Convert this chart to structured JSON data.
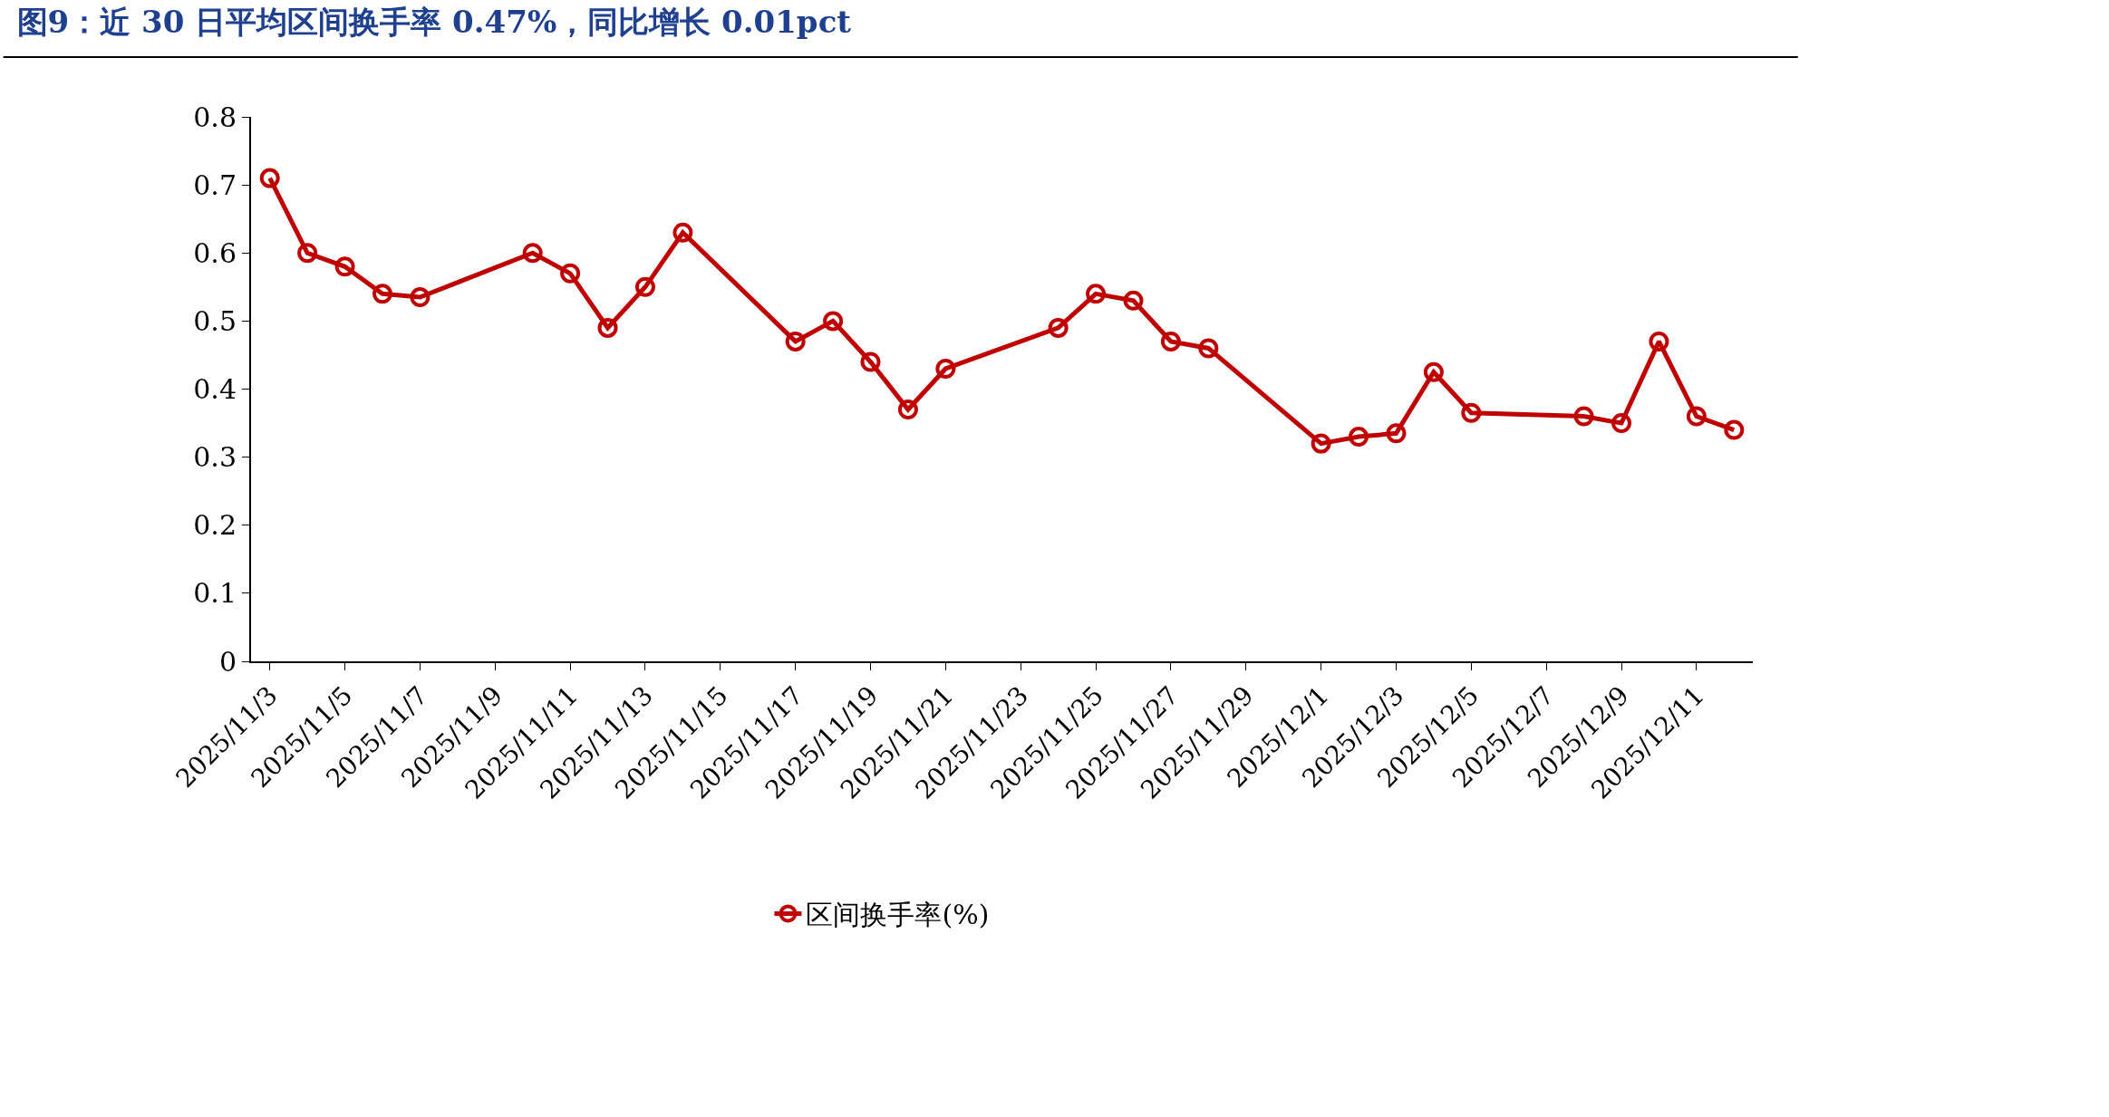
{
  "chart_data": {
    "type": "line",
    "title": "图9：近 30 日平均区间换手率 0.47%，同比增长 0.01pct",
    "x": [
      "2025-11-03",
      "2025-11-04",
      "2025-11-05",
      "2025-11-06",
      "2025-11-07",
      "2025-11-10",
      "2025-11-11",
      "2025-11-12",
      "2025-11-13",
      "2025-11-14",
      "2025-11-17",
      "2025-11-18",
      "2025-11-19",
      "2025-11-20",
      "2025-11-21",
      "2025-11-24",
      "2025-11-25",
      "2025-11-26",
      "2025-11-27",
      "2025-11-28",
      "2025-12-01",
      "2025-12-02",
      "2025-12-03",
      "2025-12-04",
      "2025-12-05",
      "2025-12-08",
      "2025-12-09",
      "2025-12-10",
      "2025-12-11",
      "2025-12-12"
    ],
    "series": [
      {
        "name": "区间换手率(%)",
        "color": "#c00000",
        "values": [
          0.71,
          0.6,
          0.58,
          0.54,
          0.535,
          0.6,
          0.57,
          0.49,
          0.55,
          0.63,
          0.47,
          0.5,
          0.44,
          0.37,
          0.43,
          0.49,
          0.54,
          0.53,
          0.47,
          0.46,
          0.32,
          0.33,
          0.335,
          0.425,
          0.365,
          0.36,
          0.35,
          0.47,
          0.36,
          0.34
        ]
      }
    ],
    "xlim": [
      "2025-11-02T12:00",
      "2025-12-12T12:00"
    ],
    "xticks": [
      {
        "value": "2025-11-03",
        "label": "2025/11/3"
      },
      {
        "value": "2025-11-05",
        "label": "2025/11/5"
      },
      {
        "value": "2025-11-07",
        "label": "2025/11/7"
      },
      {
        "value": "2025-11-09",
        "label": "2025/11/9"
      },
      {
        "value": "2025-11-11",
        "label": "2025/11/11"
      },
      {
        "value": "2025-11-13",
        "label": "2025/11/13"
      },
      {
        "value": "2025-11-15",
        "label": "2025/11/15"
      },
      {
        "value": "2025-11-17",
        "label": "2025/11/17"
      },
      {
        "value": "2025-11-19",
        "label": "2025/11/19"
      },
      {
        "value": "2025-11-21",
        "label": "2025/11/21"
      },
      {
        "value": "2025-11-23",
        "label": "2025/11/23"
      },
      {
        "value": "2025-11-25",
        "label": "2025/11/25"
      },
      {
        "value": "2025-11-27",
        "label": "2025/11/27"
      },
      {
        "value": "2025-11-29",
        "label": "2025/11/29"
      },
      {
        "value": "2025-12-01",
        "label": "2025/12/1"
      },
      {
        "value": "2025-12-03",
        "label": "2025/12/3"
      },
      {
        "value": "2025-12-05",
        "label": "2025/12/5"
      },
      {
        "value": "2025-12-07",
        "label": "2025/12/7"
      },
      {
        "value": "2025-12-09",
        "label": "2025/12/9"
      },
      {
        "value": "2025-12-11",
        "label": "2025/12/11"
      }
    ],
    "ylim": [
      0,
      0.8
    ],
    "yticks": [
      0,
      0.1,
      0.2,
      0.3,
      0.4,
      0.5,
      0.6,
      0.7,
      0.8
    ],
    "legend": "bottom",
    "marker": "circle",
    "line_style": "solid"
  }
}
